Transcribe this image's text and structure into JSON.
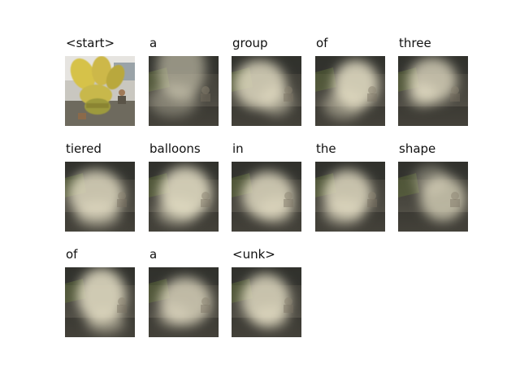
{
  "title": "",
  "words": [
    "<start>",
    "a",
    "group",
    "of",
    "three",
    "tiered",
    "balloons",
    "in",
    "the",
    "shape",
    "of",
    "a",
    "<unk>"
  ],
  "colors": {
    "background": "#ffffff",
    "dark_tone": "#2a2a26",
    "mid_tone": "#6e6a5e",
    "light_tone": "#e8e2c8",
    "yellow_balloon": "#d6c24a",
    "green_tint": "#6b7d3a"
  },
  "images": [
    {
      "kind": "original"
    },
    {
      "kind": "attention"
    },
    {
      "kind": "attention"
    },
    {
      "kind": "attention"
    },
    {
      "kind": "attention"
    },
    {
      "kind": "attention"
    },
    {
      "kind": "attention"
    },
    {
      "kind": "attention"
    },
    {
      "kind": "attention"
    },
    {
      "kind": "attention"
    },
    {
      "kind": "attention"
    },
    {
      "kind": "attention"
    },
    {
      "kind": "attention"
    }
  ]
}
